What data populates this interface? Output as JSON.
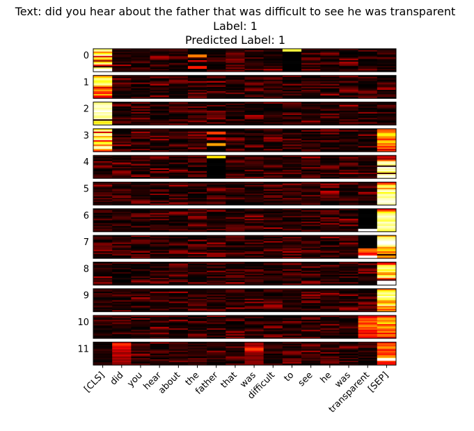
{
  "chart_data": {
    "type": "heatmap",
    "title_lines": [
      "Text: did you hear about the father that was difficult to see he was transparent",
      "Label: 1",
      "Predicted Label: 1"
    ],
    "x_tokens": [
      "[CLS]",
      "did",
      "you",
      "hear",
      "about",
      "the",
      "father",
      "that",
      "was",
      "difficult",
      "to",
      "see",
      "he",
      "was",
      "transparent",
      "[SEP]"
    ],
    "panel_labels": [
      "0",
      "1",
      "2",
      "3",
      "4",
      "5",
      "6",
      "7",
      "8",
      "9",
      "10",
      "11"
    ],
    "rows_per_panel": 16,
    "colormap": "hot",
    "value_range": [
      0,
      1
    ],
    "highlights": [
      {
        "panel": 0,
        "token": 0,
        "rows": [
          0.85,
          0.9,
          0.55,
          0.75,
          0.95,
          0.3,
          0.8,
          0.6,
          0.2,
          0.7,
          0.9,
          0.4,
          0.05,
          0.85,
          1.0,
          1.0
        ]
      },
      {
        "panel": 0,
        "token": 5,
        "rows": [
          0.0,
          0.0,
          0.0,
          0.0,
          0.55,
          0.55,
          0.1,
          0.0,
          0.35,
          0.05,
          0.0,
          0.0,
          0.4,
          0.4,
          0.0,
          0.0
        ]
      },
      {
        "panel": 0,
        "token": 10,
        "rows": [
          0.8,
          0.8,
          0.0,
          0.0,
          0.0,
          0.0,
          0.0,
          0.0,
          0.0,
          0.0,
          0.0,
          0.0,
          0.0,
          0.0,
          0.0,
          0.0
        ]
      },
      {
        "panel": 1,
        "token": 0,
        "rows": [
          0.55,
          0.7,
          0.9,
          0.8,
          0.75,
          0.85,
          0.9,
          0.6,
          0.3,
          0.5,
          0.6,
          0.45,
          0.4,
          0.65,
          0.35,
          0.3
        ]
      },
      {
        "panel": 2,
        "token": 0,
        "rows": [
          0.85,
          0.9,
          0.95,
          0.95,
          0.9,
          0.95,
          1.0,
          0.9,
          0.95,
          0.9,
          0.85,
          0.95,
          0.05,
          0.8,
          0.7,
          0.85
        ]
      },
      {
        "panel": 3,
        "token": 0,
        "rows": [
          0.7,
          0.9,
          0.3,
          0.85,
          0.95,
          0.6,
          0.8,
          0.9,
          0.35,
          0.75,
          0.8,
          0.5,
          0.9,
          0.95,
          0.6,
          0.4
        ]
      },
      {
        "panel": 3,
        "token": 6,
        "rows": [
          0.0,
          0.0,
          0.45,
          0.45,
          0.0,
          0.0,
          0.3,
          0.3,
          0.0,
          0.0,
          0.6,
          0.6,
          0.0,
          0.0,
          0.0,
          0.0
        ]
      },
      {
        "panel": 3,
        "token": 15,
        "rows": [
          0.5,
          0.5,
          0.55,
          0.7,
          0.75,
          0.6,
          0.55,
          0.4,
          0.65,
          0.7,
          0.5,
          0.6,
          0.4,
          0.55,
          0.3,
          0.45
        ]
      },
      {
        "panel": 4,
        "token": 6,
        "rows": [
          0.7,
          0.7,
          0.0,
          0.0,
          0.0,
          0.0,
          0.0,
          0.0,
          0.0,
          0.0,
          0.0,
          0.0,
          0.0,
          0.0,
          0.0,
          0.0
        ]
      },
      {
        "panel": 4,
        "token": 15,
        "rows": [
          0.25,
          0.3,
          0.2,
          0.5,
          0.9,
          0.95,
          0.85,
          0.05,
          1.0,
          0.9,
          0.95,
          0.8,
          0.1,
          0.9,
          1.0,
          0.95
        ]
      },
      {
        "panel": 5,
        "token": 15,
        "rows": [
          0.4,
          0.5,
          0.8,
          0.85,
          0.55,
          0.9,
          0.95,
          0.75,
          0.9,
          0.92,
          0.85,
          0.93,
          0.95,
          0.98,
          0.95,
          0.9
        ]
      },
      {
        "panel": 6,
        "token": 15,
        "rows": [
          0.35,
          0.5,
          0.75,
          0.85,
          0.9,
          0.95,
          0.9,
          0.85,
          0.8,
          0.95,
          0.9,
          0.85,
          0.95,
          0.9,
          0.85,
          0.8
        ]
      },
      {
        "panel": 6,
        "token": 14,
        "rows": [
          0.0,
          0.0,
          0.0,
          0.0,
          0.0,
          0.0,
          0.0,
          0.0,
          0.0,
          0.0,
          0.0,
          0.0,
          0.0,
          0.0,
          1.0,
          1.0
        ]
      },
      {
        "panel": 7,
        "token": 15,
        "rows": [
          0.6,
          0.85,
          0.9,
          0.95,
          1.0,
          1.0,
          0.95,
          0.85,
          0.55,
          0.65,
          0.7,
          0.5,
          0.6,
          0.05,
          0.6,
          0.55
        ]
      },
      {
        "panel": 7,
        "token": 14,
        "rows": [
          0.0,
          0.0,
          0.0,
          0.0,
          0.0,
          0.0,
          0.0,
          0.0,
          0.0,
          0.5,
          0.55,
          0.5,
          0.35,
          0.4,
          1.0,
          1.0
        ]
      },
      {
        "panel": 8,
        "token": 15,
        "rows": [
          0.3,
          0.4,
          0.8,
          0.85,
          0.9,
          0.75,
          0.85,
          0.6,
          0.55,
          0.8,
          0.9,
          0.45,
          0.1,
          1.0,
          1.0,
          1.0
        ]
      },
      {
        "panel": 9,
        "token": 15,
        "rows": [
          0.5,
          0.75,
          0.85,
          0.9,
          0.8,
          0.95,
          0.85,
          0.8,
          0.6,
          0.55,
          0.7,
          0.9,
          0.5,
          0.65,
          0.45,
          0.6
        ]
      },
      {
        "panel": 10,
        "token": 15,
        "rows": [
          0.35,
          0.5,
          0.65,
          0.55,
          0.6,
          0.75,
          0.4,
          0.55,
          0.65,
          0.5,
          0.45,
          0.6,
          0.35,
          0.55,
          0.5,
          0.3
        ]
      },
      {
        "panel": 10,
        "token": 14,
        "rows": [
          0.3,
          0.35,
          0.5,
          0.45,
          0.55,
          0.4,
          0.5,
          0.6,
          0.45,
          0.5,
          0.35,
          0.4,
          0.3,
          0.45,
          0.4,
          0.35
        ]
      },
      {
        "panel": 11,
        "token": 15,
        "rows": [
          0.4,
          0.5,
          0.45,
          0.6,
          0.55,
          0.35,
          0.5,
          0.45,
          0.4,
          0.55,
          0.6,
          0.95,
          1.0,
          0.45,
          0.35,
          0.4
        ]
      },
      {
        "panel": 11,
        "token": 1,
        "rows": [
          0.3,
          0.45,
          0.4,
          0.3,
          0.35,
          0.25,
          0.3,
          0.2,
          0.25,
          0.3,
          0.2,
          0.25,
          0.2,
          0.25,
          0.2,
          0.2
        ]
      },
      {
        "panel": 11,
        "token": 8,
        "rows": [
          0.2,
          0.25,
          0.2,
          0.3,
          0.45,
          0.45,
          0.3,
          0.2,
          0.2,
          0.15,
          0.2,
          0.2,
          0.15,
          0.2,
          0.2,
          0.2
        ]
      }
    ]
  }
}
